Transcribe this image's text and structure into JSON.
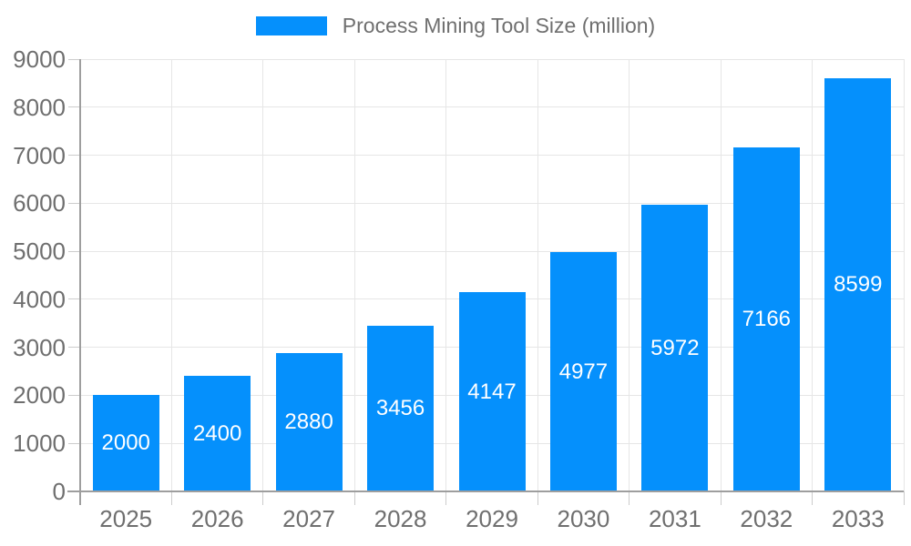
{
  "chart_data": {
    "type": "bar",
    "orientation": "vertical",
    "title": "",
    "legend_label": "Process Mining Tool Size (million)",
    "legend_position": "top-center",
    "categories": [
      "2025",
      "2026",
      "2027",
      "2028",
      "2029",
      "2030",
      "2031",
      "2032",
      "2033"
    ],
    "series": [
      {
        "name": "Process Mining Tool Size (million)",
        "values": [
          2000,
          2400,
          2880,
          3456,
          4147,
          4977,
          5972,
          7166,
          8599
        ]
      }
    ],
    "value_labels_position": "inside-center",
    "xlabel": "",
    "ylabel": "",
    "ylim": [
      0,
      9000
    ],
    "yticks": [
      0,
      1000,
      2000,
      3000,
      4000,
      5000,
      6000,
      7000,
      8000,
      9000
    ],
    "grid": true
  },
  "colors": {
    "bar": "#0590FC",
    "value_label": "#ffffff",
    "axis_label": "#6f6f6f",
    "legend_label": "#6f6f6f",
    "gridline": "#e6e6e6",
    "tick": "#cccccc",
    "axis_line": "#9e9e9e",
    "background": "#ffffff"
  }
}
